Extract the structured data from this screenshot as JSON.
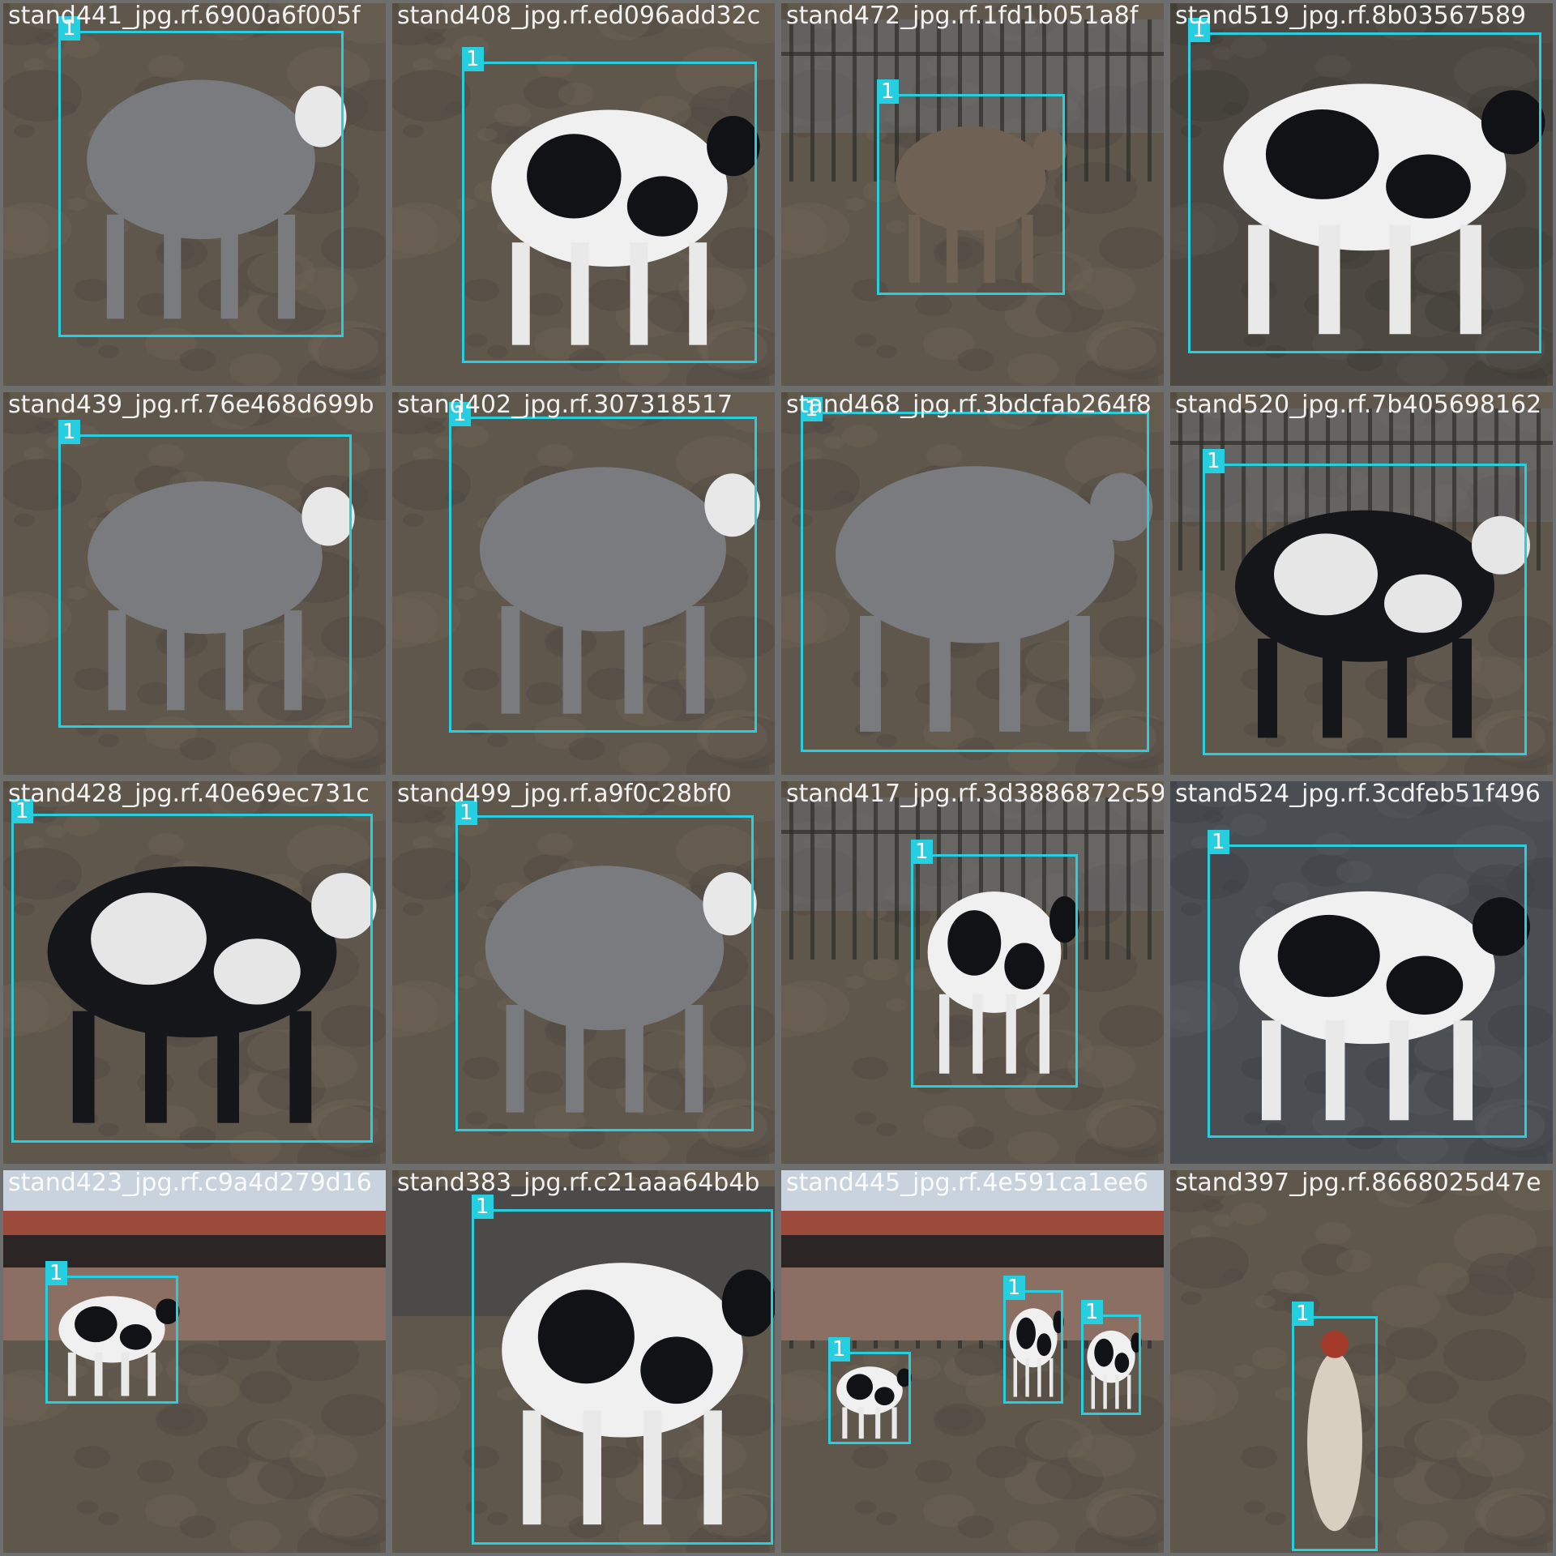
{
  "colors": {
    "box": "#26cfe0",
    "label_text": "#ffffff",
    "separator": "#6e6e6e"
  },
  "tiles": [
    {
      "filename": "stand441_jpg.rf.6900a6f005f",
      "scene": "dirt-gray-cow",
      "detections": [
        {
          "label": "1",
          "object": "cow"
        }
      ]
    },
    {
      "filename": "stand408_jpg.rf.ed096add32c",
      "scene": "dirt-holstein",
      "detections": [
        {
          "label": "1",
          "object": "cow"
        }
      ]
    },
    {
      "filename": "stand472_jpg.rf.1fd1b051a8f",
      "scene": "fence-brown-cow",
      "detections": [
        {
          "label": "1",
          "object": "cow"
        }
      ]
    },
    {
      "filename": "stand519_jpg.rf.8b03567589",
      "scene": "dirt-holstein-dark",
      "detections": [
        {
          "label": "1",
          "object": "cow"
        }
      ]
    },
    {
      "filename": "stand439_jpg.rf.76e468d699b",
      "scene": "dirt-gray-cow",
      "detections": [
        {
          "label": "1",
          "object": "cow"
        }
      ]
    },
    {
      "filename": "stand402_jpg.rf.307318517",
      "scene": "dirt-gray-cow-large",
      "detections": [
        {
          "label": "1",
          "object": "cow"
        }
      ]
    },
    {
      "filename": "stand468_jpg.rf.3bdcfab264f8",
      "scene": "dirt-rear-cow",
      "detections": [
        {
          "label": "1",
          "object": "cow"
        }
      ]
    },
    {
      "filename": "stand520_jpg.rf.7b405698162",
      "scene": "fence-black-cow",
      "detections": [
        {
          "label": "1",
          "object": "cow"
        }
      ]
    },
    {
      "filename": "stand428_jpg.rf.40e69ec731c",
      "scene": "dirt-black-cow",
      "detections": [
        {
          "label": "1",
          "object": "cow"
        }
      ]
    },
    {
      "filename": "stand499_jpg.rf.a9f0c28bf0",
      "scene": "dirt-gray-cow",
      "detections": [
        {
          "label": "1",
          "object": "cow"
        }
      ]
    },
    {
      "filename": "stand417_jpg.rf.3d3886872c59",
      "scene": "yard-holstein",
      "detections": [
        {
          "label": "1",
          "object": "cow"
        }
      ]
    },
    {
      "filename": "stand524_jpg.rf.3cdfeb51f496",
      "scene": "night-holstein",
      "detections": [
        {
          "label": "1",
          "object": "cow"
        }
      ]
    },
    {
      "filename": "stand423_jpg.rf.c9a4d279d16",
      "scene": "wall-small-holstein",
      "detections": [
        {
          "label": "1",
          "object": "cow"
        }
      ]
    },
    {
      "filename": "stand383_jpg.rf.c21aaa64b4b",
      "scene": "truck-holstein",
      "detections": [
        {
          "label": "1",
          "object": "cow"
        }
      ]
    },
    {
      "filename": "stand445_jpg.rf.4e591ca1ee6",
      "scene": "yard-three-cows",
      "detections": [
        {
          "label": "1",
          "object": "cow"
        },
        {
          "label": "1",
          "object": "cow"
        },
        {
          "label": "1",
          "object": "cow"
        }
      ]
    },
    {
      "filename": "stand397_jpg.rf.8668025d47e",
      "scene": "dirt-chicken",
      "detections": [
        {
          "label": "1",
          "object": "chicken"
        }
      ]
    }
  ]
}
